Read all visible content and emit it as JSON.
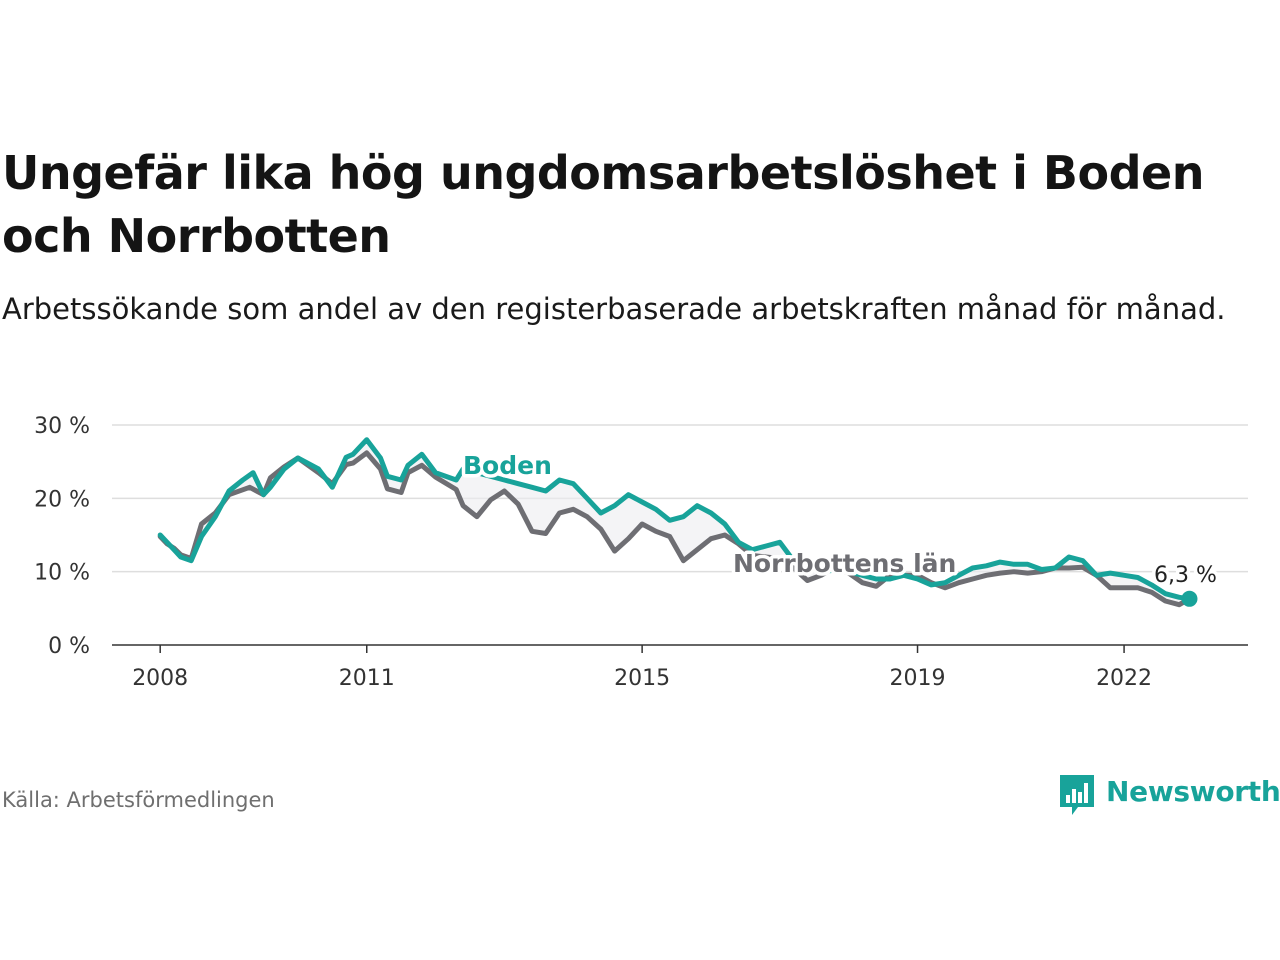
{
  "title": "Ungefär lika hög ungdomsarbetslöshet i Boden och Norrbotten",
  "subtitle": "Arbetssökande som andel av den registerbaserade arbetskraften månad för månad.",
  "source": "Källa: Arbetsförmedlingen",
  "brand": "Newsworthy",
  "colors": {
    "boden": "#18a39a",
    "norrbotten": "#6e6e73",
    "grid": "#dedede",
    "axis": "#333333",
    "fill": "#ededf0"
  },
  "chart_data": {
    "type": "line",
    "title": "Ungefär lika hög ungdomsarbetslöshet i Boden och Norrbotten",
    "xlabel": "",
    "ylabel": "",
    "xlim": [
      2007.3,
      2023.8
    ],
    "ylim": [
      0,
      30
    ],
    "y_ticks": [
      {
        "value": 0,
        "label": "0 %"
      },
      {
        "value": 10,
        "label": "10 %"
      },
      {
        "value": 20,
        "label": "20 %"
      },
      {
        "value": 30,
        "label": "30 %"
      }
    ],
    "x_ticks": [
      {
        "value": 2008,
        "label": "2008"
      },
      {
        "value": 2011,
        "label": "2011"
      },
      {
        "value": 2015,
        "label": "2015"
      },
      {
        "value": 2019,
        "label": "2019"
      },
      {
        "value": 2022,
        "label": "2022"
      }
    ],
    "grid": true,
    "series": [
      {
        "name": "Norrbottens län",
        "label": "Norrbottens län",
        "color": "#6e6e73",
        "x": [
          2008.0,
          2008.1,
          2008.2,
          2008.3,
          2008.45,
          2008.6,
          2008.8,
          2009.0,
          2009.3,
          2009.5,
          2009.6,
          2009.8,
          2010.0,
          2010.3,
          2010.5,
          2010.7,
          2010.8,
          2011.0,
          2011.2,
          2011.3,
          2011.5,
          2011.6,
          2011.8,
          2012.0,
          2012.3,
          2012.4,
          2012.6,
          2012.8,
          2013.0,
          2013.2,
          2013.4,
          2013.6,
          2013.8,
          2014.0,
          2014.2,
          2014.4,
          2014.6,
          2014.8,
          2015.0,
          2015.2,
          2015.4,
          2015.6,
          2015.8,
          2016.0,
          2016.2,
          2016.4,
          2016.6,
          2016.8,
          2017.0,
          2017.2,
          2017.4,
          2017.6,
          2017.8,
          2018.0,
          2018.2,
          2018.4,
          2018.6,
          2018.8,
          2019.0,
          2019.2,
          2019.4,
          2019.6,
          2019.8,
          2020.0,
          2020.2,
          2020.4,
          2020.6,
          2020.8,
          2021.0,
          2021.2,
          2021.4,
          2021.6,
          2021.8,
          2022.0,
          2022.2,
          2022.4,
          2022.6,
          2022.8,
          2022.95
        ],
        "values": [
          14.8,
          13.8,
          13.2,
          12.3,
          11.8,
          16.5,
          18.0,
          20.5,
          21.5,
          20.5,
          22.8,
          24.3,
          25.5,
          23.5,
          22.0,
          24.6,
          24.8,
          26.2,
          24.0,
          21.3,
          20.8,
          23.5,
          24.5,
          22.9,
          21.2,
          19.0,
          17.5,
          19.8,
          21.0,
          19.2,
          15.5,
          15.2,
          18.0,
          18.5,
          17.5,
          15.8,
          12.8,
          14.5,
          16.5,
          15.5,
          14.8,
          11.5,
          13.0,
          14.5,
          15.0,
          13.8,
          12.2,
          12.0,
          11.8,
          10.5,
          8.8,
          9.5,
          10.6,
          9.8,
          8.5,
          8.0,
          9.5,
          9.5,
          9.5,
          8.5,
          7.8,
          8.5,
          9.0,
          9.5,
          9.8,
          10.0,
          9.8,
          10.0,
          10.5,
          10.5,
          10.6,
          9.5,
          7.8,
          7.8,
          7.8,
          7.2,
          6.0,
          5.5,
          6.3
        ]
      },
      {
        "name": "Boden",
        "label": "Boden",
        "color": "#18a39a",
        "x": [
          2008.0,
          2008.1,
          2008.2,
          2008.3,
          2008.45,
          2008.6,
          2008.8,
          2009.0,
          2009.2,
          2009.35,
          2009.5,
          2009.6,
          2009.8,
          2010.0,
          2010.3,
          2010.5,
          2010.7,
          2010.8,
          2011.0,
          2011.2,
          2011.3,
          2011.5,
          2011.6,
          2011.8,
          2012.0,
          2012.3,
          2012.4,
          2012.6,
          2012.8,
          2013.0,
          2013.2,
          2013.4,
          2013.6,
          2013.8,
          2014.0,
          2014.2,
          2014.4,
          2014.6,
          2014.8,
          2015.0,
          2015.2,
          2015.4,
          2015.6,
          2015.8,
          2016.0,
          2016.2,
          2016.4,
          2016.6,
          2016.8,
          2017.0,
          2017.2,
          2017.4,
          2017.6,
          2017.8,
          2018.0,
          2018.2,
          2018.4,
          2018.6,
          2018.8,
          2019.0,
          2019.2,
          2019.4,
          2019.6,
          2019.8,
          2020.0,
          2020.2,
          2020.4,
          2020.6,
          2020.8,
          2021.0,
          2021.2,
          2021.4,
          2021.6,
          2021.8,
          2022.0,
          2022.2,
          2022.4,
          2022.6,
          2022.8,
          2022.95
        ],
        "values": [
          15.0,
          14.0,
          13.0,
          12.0,
          11.5,
          14.8,
          17.5,
          21.0,
          22.5,
          23.5,
          20.5,
          21.5,
          24.0,
          25.5,
          24.0,
          21.5,
          25.6,
          26.0,
          28.0,
          25.5,
          23.0,
          22.5,
          24.5,
          26.0,
          23.5,
          22.5,
          24.0,
          23.5,
          23.0,
          22.5,
          22.0,
          21.5,
          21.0,
          22.5,
          22.0,
          20.0,
          18.0,
          19.0,
          20.5,
          19.5,
          18.5,
          17.0,
          17.5,
          19.0,
          18.0,
          16.5,
          14.0,
          13.0,
          13.5,
          14.0,
          11.5,
          10.5,
          10.0,
          10.2,
          10.0,
          9.5,
          9.0,
          9.0,
          9.5,
          9.0,
          8.2,
          8.5,
          9.5,
          10.5,
          10.8,
          11.3,
          11.0,
          11.0,
          10.3,
          10.5,
          12.0,
          11.5,
          9.5,
          9.8,
          9.5,
          9.2,
          8.2,
          7.0,
          6.5,
          6.3
        ]
      }
    ],
    "annotations": [
      {
        "text": "Boden",
        "series": "Boden"
      },
      {
        "text": "Norrbottens län",
        "series": "Norrbottens län"
      },
      {
        "text": "6,3 %",
        "x": 2022.95,
        "y": 6.3
      }
    ]
  }
}
